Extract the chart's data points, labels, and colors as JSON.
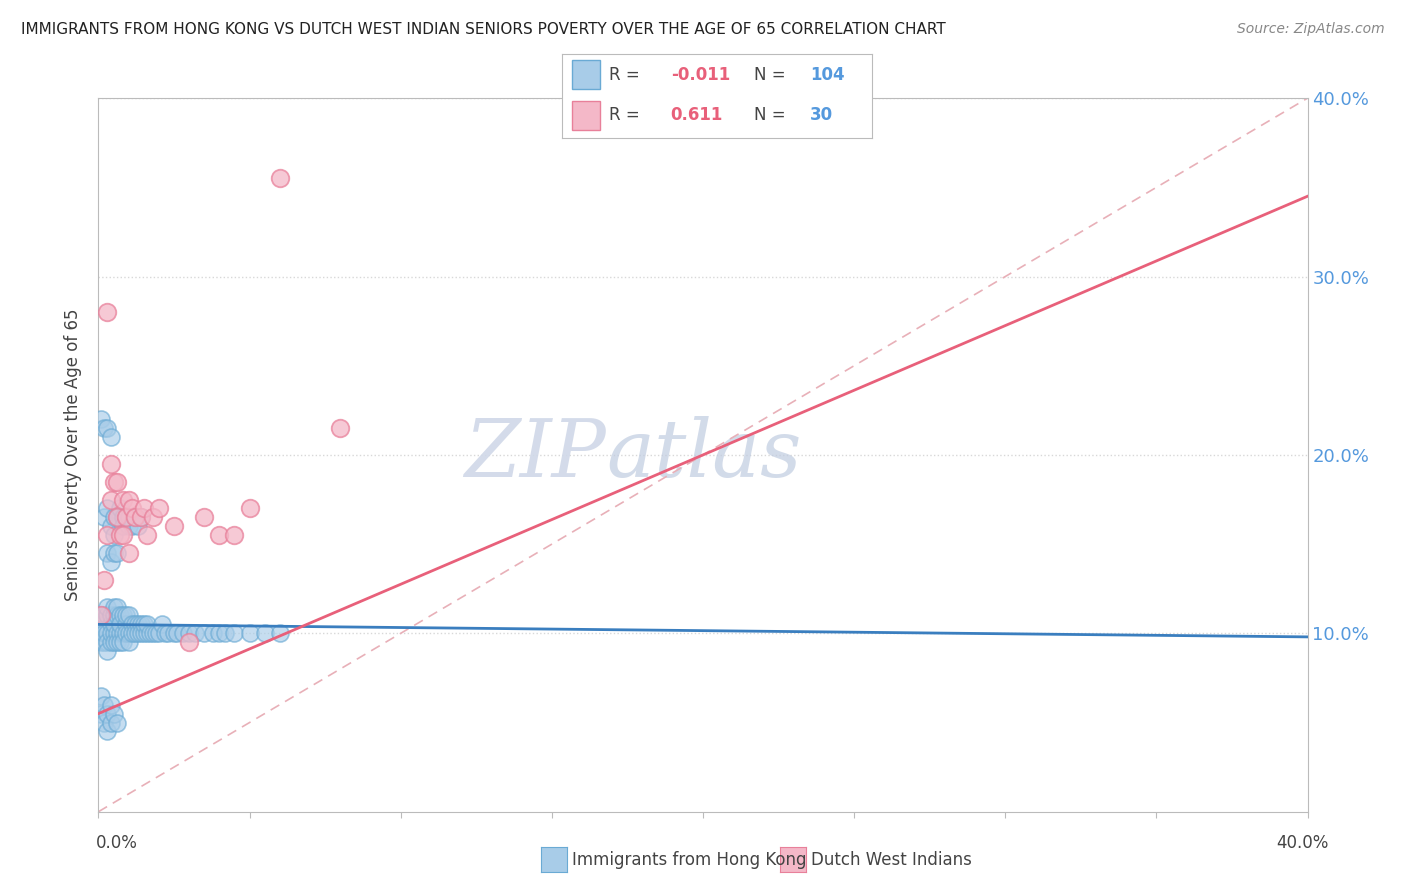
{
  "title": "IMMIGRANTS FROM HONG KONG VS DUTCH WEST INDIAN SENIORS POVERTY OVER THE AGE OF 65 CORRELATION CHART",
  "source": "Source: ZipAtlas.com",
  "ylabel": "Seniors Poverty Over the Age of 65",
  "legend_label1": "Immigrants from Hong Kong",
  "legend_label2": "Dutch West Indians",
  "R1": -0.011,
  "N1": 104,
  "R2": 0.611,
  "N2": 30,
  "color1": "#a8cce8",
  "color2": "#f4b8c8",
  "color1_edge": "#6aaad4",
  "color2_edge": "#e8809a",
  "trend1_color": "#3a7ebf",
  "trend2_color": "#e8607a",
  "ref_line_color": "#e8b0b8",
  "background_color": "#ffffff",
  "grid_color": "#d8d8d8",
  "right_label_color": "#5599dd",
  "xlim": [
    0.0,
    0.4
  ],
  "ylim": [
    0.0,
    0.4
  ],
  "y_ticks": [
    0.1,
    0.2,
    0.3,
    0.4
  ],
  "y_tick_labels": [
    "10.0%",
    "20.0%",
    "30.0%",
    "40.0%"
  ],
  "hk_trend_y0": 0.105,
  "hk_trend_y1": 0.098,
  "dwi_trend_y0": 0.055,
  "dwi_trend_y1": 0.345,
  "hk_x": [
    0.001,
    0.001,
    0.001,
    0.002,
    0.002,
    0.002,
    0.002,
    0.003,
    0.003,
    0.003,
    0.003,
    0.003,
    0.004,
    0.004,
    0.004,
    0.004,
    0.005,
    0.005,
    0.005,
    0.005,
    0.005,
    0.006,
    0.006,
    0.006,
    0.006,
    0.007,
    0.007,
    0.007,
    0.007,
    0.008,
    0.008,
    0.008,
    0.009,
    0.009,
    0.009,
    0.01,
    0.01,
    0.01,
    0.011,
    0.011,
    0.012,
    0.012,
    0.013,
    0.013,
    0.014,
    0.014,
    0.015,
    0.015,
    0.016,
    0.016,
    0.017,
    0.018,
    0.019,
    0.02,
    0.021,
    0.022,
    0.023,
    0.025,
    0.026,
    0.028,
    0.03,
    0.032,
    0.035,
    0.038,
    0.04,
    0.042,
    0.045,
    0.05,
    0.055,
    0.06,
    0.002,
    0.003,
    0.004,
    0.005,
    0.005,
    0.006,
    0.007,
    0.008,
    0.008,
    0.009,
    0.01,
    0.01,
    0.011,
    0.012,
    0.013,
    0.014,
    0.003,
    0.004,
    0.005,
    0.006,
    0.001,
    0.001,
    0.002,
    0.002,
    0.003,
    0.003,
    0.004,
    0.004,
    0.005,
    0.006,
    0.001,
    0.002,
    0.003,
    0.004
  ],
  "hk_y": [
    0.105,
    0.095,
    0.11,
    0.105,
    0.095,
    0.11,
    0.1,
    0.1,
    0.11,
    0.095,
    0.115,
    0.09,
    0.105,
    0.095,
    0.11,
    0.1,
    0.1,
    0.11,
    0.095,
    0.115,
    0.105,
    0.1,
    0.11,
    0.095,
    0.115,
    0.1,
    0.11,
    0.095,
    0.105,
    0.1,
    0.11,
    0.095,
    0.105,
    0.1,
    0.11,
    0.1,
    0.11,
    0.095,
    0.105,
    0.1,
    0.105,
    0.1,
    0.105,
    0.1,
    0.105,
    0.1,
    0.1,
    0.105,
    0.1,
    0.105,
    0.1,
    0.1,
    0.1,
    0.1,
    0.105,
    0.1,
    0.1,
    0.1,
    0.1,
    0.1,
    0.1,
    0.1,
    0.1,
    0.1,
    0.1,
    0.1,
    0.1,
    0.1,
    0.1,
    0.1,
    0.165,
    0.17,
    0.16,
    0.165,
    0.155,
    0.165,
    0.17,
    0.165,
    0.16,
    0.165,
    0.16,
    0.165,
    0.16,
    0.165,
    0.16,
    0.165,
    0.145,
    0.14,
    0.145,
    0.145,
    0.065,
    0.055,
    0.06,
    0.05,
    0.055,
    0.045,
    0.06,
    0.05,
    0.055,
    0.05,
    0.22,
    0.215,
    0.215,
    0.21
  ],
  "dwi_x": [
    0.001,
    0.002,
    0.003,
    0.004,
    0.005,
    0.006,
    0.007,
    0.008,
    0.009,
    0.01,
    0.011,
    0.012,
    0.014,
    0.015,
    0.016,
    0.018,
    0.02,
    0.025,
    0.03,
    0.035,
    0.04,
    0.045,
    0.05,
    0.06,
    0.08,
    0.003,
    0.004,
    0.006,
    0.008,
    0.01
  ],
  "dwi_y": [
    0.11,
    0.13,
    0.155,
    0.175,
    0.185,
    0.165,
    0.155,
    0.175,
    0.165,
    0.175,
    0.17,
    0.165,
    0.165,
    0.17,
    0.155,
    0.165,
    0.17,
    0.16,
    0.095,
    0.165,
    0.155,
    0.155,
    0.17,
    0.355,
    0.215,
    0.28,
    0.195,
    0.185,
    0.155,
    0.145
  ]
}
